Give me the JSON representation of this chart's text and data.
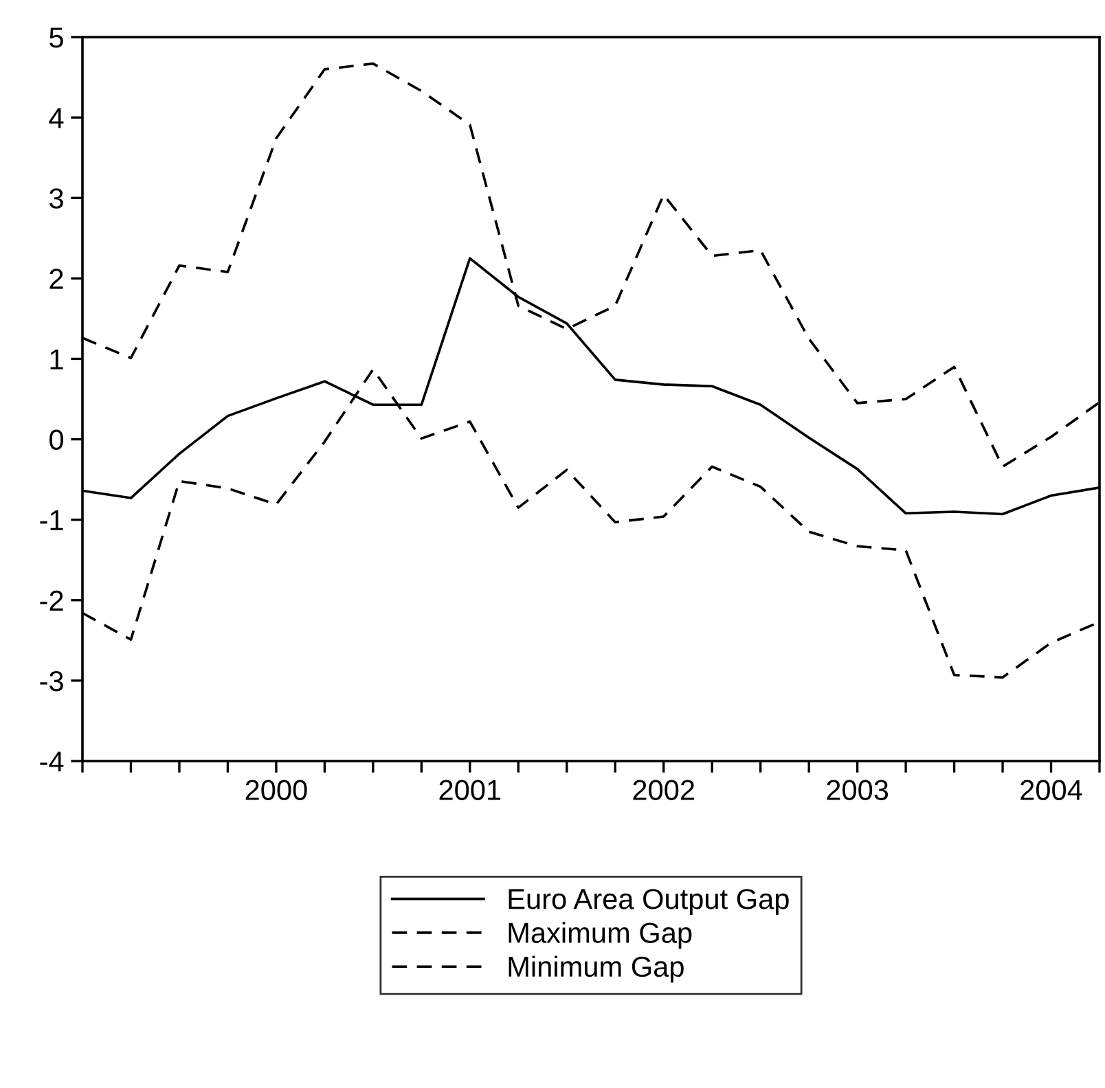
{
  "chart_data": {
    "type": "line",
    "categories": [
      null,
      null,
      null,
      null,
      "2000",
      null,
      null,
      null,
      "2001",
      null,
      null,
      null,
      "2002",
      null,
      null,
      null,
      "2003",
      null,
      null,
      null,
      "2004",
      null
    ],
    "series": [
      {
        "name": "Euro Area Output Gap",
        "color": "#000000",
        "line_style": "solid",
        "values": [
          -0.64,
          -0.73,
          -0.18,
          0.29,
          0.51,
          0.72,
          0.43,
          0.43,
          2.25,
          1.77,
          1.44,
          0.74,
          0.68,
          0.66,
          0.43,
          0.02,
          -0.37,
          -0.92,
          -0.9,
          -0.93,
          -0.7,
          -0.6
        ]
      },
      {
        "name": "Maximum Gap",
        "color": "#000000",
        "line_style": "dashed",
        "values": [
          1.26,
          1.01,
          2.16,
          2.08,
          3.74,
          4.6,
          4.67,
          4.33,
          3.91,
          1.66,
          1.37,
          1.66,
          3.04,
          2.28,
          2.35,
          1.25,
          0.45,
          0.5,
          0.9,
          -0.34,
          0.03,
          0.46
        ]
      },
      {
        "name": "Minimum Gap",
        "color": "#000000",
        "line_style": "dashed",
        "values": [
          -2.16,
          -2.49,
          -0.52,
          -0.61,
          -0.81,
          -0.03,
          0.87,
          0.01,
          0.22,
          -0.85,
          -0.38,
          -1.03,
          -0.96,
          -0.34,
          -0.59,
          -1.15,
          -1.33,
          -1.38,
          -2.93,
          -2.96,
          -2.53,
          -2.27
        ]
      }
    ],
    "ylim": [
      -4,
      5
    ],
    "yticks": [
      -4,
      -3,
      -2,
      -1,
      0,
      1,
      2,
      3,
      4,
      5
    ],
    "grid": false,
    "legend": "bottom"
  }
}
